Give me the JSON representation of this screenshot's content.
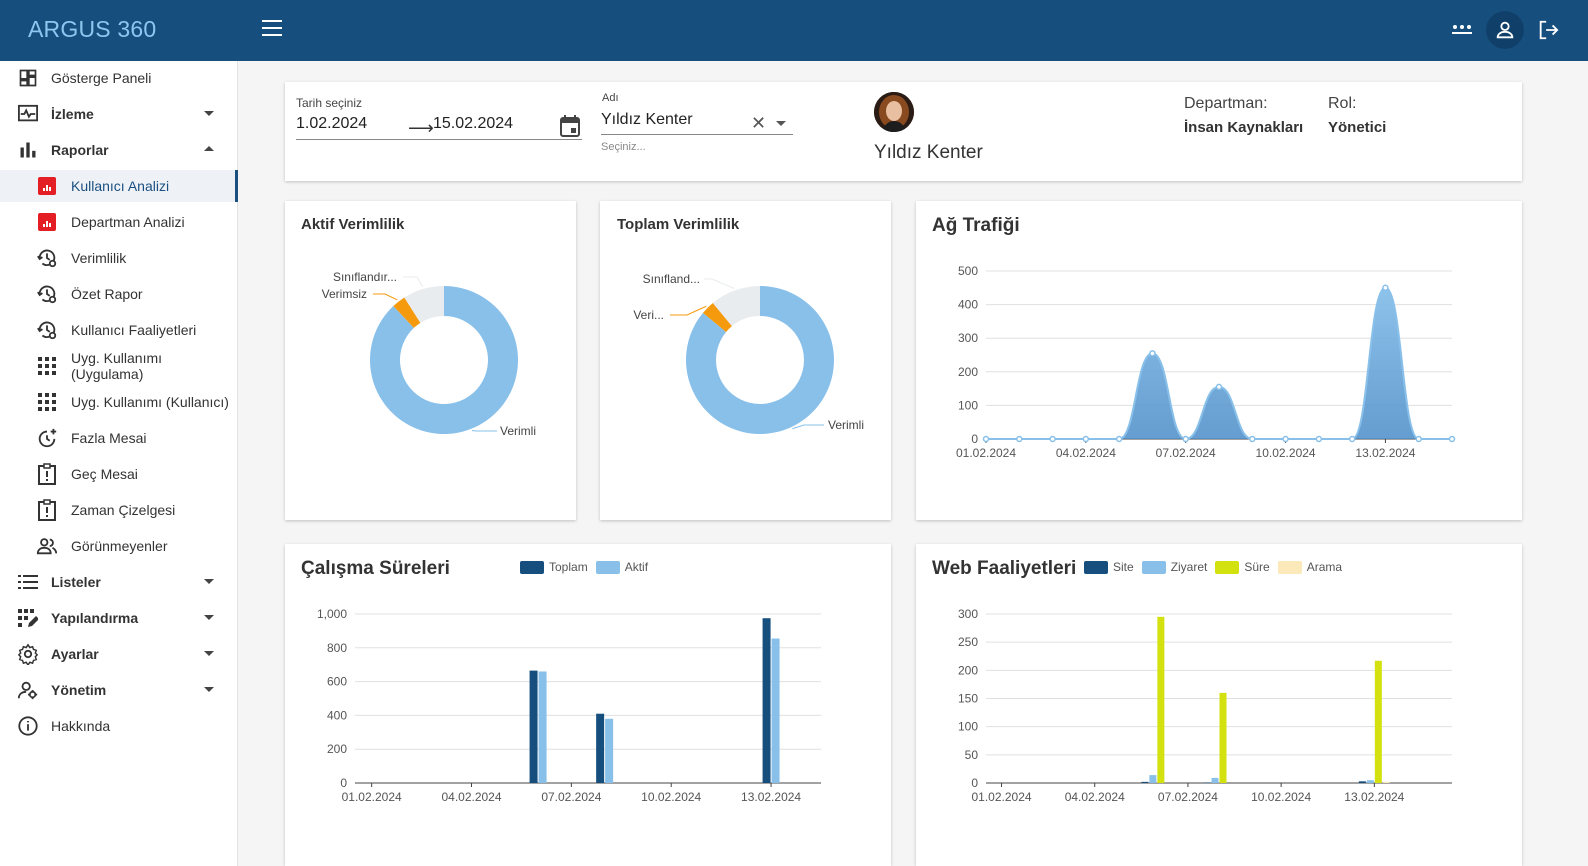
{
  "app": {
    "title": "ARGUS 360"
  },
  "colors": {
    "header": "#164f7e",
    "brand": "#8ec6ef",
    "primary_light": "#88c0ea",
    "primary_dark": "#164f7e",
    "orange": "#f59a0c",
    "grey": "#e9ecee",
    "lime": "#d3e20f",
    "cream": "#fbe9b9"
  },
  "header_icons": [
    "menu-icon",
    "more-icon",
    "user-icon",
    "logout-icon"
  ],
  "sidebar": {
    "items": [
      {
        "label": "Gösterge Paneli",
        "icon": "dashboard-icon"
      },
      {
        "label": "İzleme",
        "icon": "monitor-icon"
      },
      {
        "label": "Raporlar",
        "icon": "bar-chart-icon"
      },
      {
        "label": "Kullanıcı Analizi",
        "icon": "report-icon"
      },
      {
        "label": "Departman Analizi",
        "icon": "report-icon"
      },
      {
        "label": "Verimlilik",
        "icon": "history-gear-icon"
      },
      {
        "label": "Özet Rapor",
        "icon": "history-gear-icon"
      },
      {
        "label": "Kullanıcı Faaliyetleri",
        "icon": "history-gear-icon"
      },
      {
        "label": "Uyg. Kullanımı (Uygulama)",
        "icon": "grid-icon"
      },
      {
        "label": "Uyg. Kullanımı (Kullanıcı)",
        "icon": "grid-icon"
      },
      {
        "label": "Fazla Mesai",
        "icon": "clock-plus-icon"
      },
      {
        "label": "Geç Mesai",
        "icon": "alert-box-icon"
      },
      {
        "label": "Zaman Çizelgesi",
        "icon": "alert-box-icon"
      },
      {
        "label": "Görünmeyenler",
        "icon": "people-icon"
      },
      {
        "label": "Listeler",
        "icon": "list-icon"
      },
      {
        "label": "Yapılandırma",
        "icon": "config-icon"
      },
      {
        "label": "Ayarlar",
        "icon": "gear-icon"
      },
      {
        "label": "Yönetim",
        "icon": "admin-icon"
      },
      {
        "label": "Hakkında",
        "icon": "info-icon"
      }
    ]
  },
  "filter": {
    "date_label": "Tarih seçiniz",
    "start_date": "1.02.2024",
    "end_date": "15.02.2024",
    "name_label": "Adı",
    "name_value": "Yıldız Kenter",
    "name_hint": "Seçiniz...",
    "user_name": "Yıldız Kenter",
    "dept_label": "Departman:",
    "dept_value": "İnsan Kaynakları",
    "role_label": "Rol:",
    "role_value": "Yönetici"
  },
  "chart_data": [
    {
      "type": "pie",
      "title": "Aktif Verimlilik",
      "labels": [
        "Verimli",
        "Verimsiz",
        "Sınıflandır..."
      ],
      "values": [
        88,
        3,
        9
      ]
    },
    {
      "type": "pie",
      "title": "Toplam Verimlilik",
      "labels": [
        "Verimli",
        "Veri...",
        "Sınıfland..."
      ],
      "values": [
        86,
        3,
        11
      ]
    },
    {
      "type": "area",
      "title": "Ağ Trafiği",
      "x": [
        "01.02.2024",
        "02.02.2024",
        "03.02.2024",
        "04.02.2024",
        "05.02.2024",
        "06.02.2024",
        "07.02.2024",
        "08.02.2024",
        "09.02.2024",
        "10.02.2024",
        "11.02.2024",
        "12.02.2024",
        "13.02.2024",
        "14.02.2024",
        "15.02.2024"
      ],
      "tick_labels": [
        "01.02.2024",
        "04.02.2024",
        "07.02.2024",
        "10.02.2024",
        "13.02.2024"
      ],
      "values": [
        0,
        0,
        0,
        0,
        0,
        255,
        0,
        155,
        0,
        0,
        0,
        0,
        450,
        0,
        0
      ],
      "ylim": [
        0,
        500
      ],
      "yticks": [
        0,
        100,
        200,
        300,
        400,
        500
      ]
    },
    {
      "type": "bar",
      "title": "Çalışma Süreleri",
      "x": [
        "01.02.2024",
        "02.02.2024",
        "03.02.2024",
        "04.02.2024",
        "05.02.2024",
        "06.02.2024",
        "07.02.2024",
        "08.02.2024",
        "09.02.2024",
        "10.02.2024",
        "11.02.2024",
        "12.02.2024",
        "13.02.2024",
        "14.02.2024"
      ],
      "tick_labels": [
        "01.02.2024",
        "04.02.2024",
        "07.02.2024",
        "10.02.2024",
        "13.02.2024"
      ],
      "series": [
        {
          "name": "Toplam",
          "values": [
            0,
            0,
            0,
            0,
            0,
            665,
            0,
            410,
            0,
            0,
            0,
            0,
            975,
            0
          ]
        },
        {
          "name": "Aktif",
          "values": [
            0,
            0,
            0,
            0,
            0,
            660,
            0,
            380,
            0,
            0,
            0,
            0,
            855,
            0
          ]
        }
      ],
      "ylim": [
        0,
        1000
      ],
      "yticks": [
        "0",
        "200",
        "400",
        "600",
        "800",
        "1,000"
      ]
    },
    {
      "type": "bar",
      "title": "Web Faaliyetleri",
      "x": [
        "01.02.2024",
        "02.02.2024",
        "03.02.2024",
        "04.02.2024",
        "05.02.2024",
        "06.02.2024",
        "07.02.2024",
        "08.02.2024",
        "09.02.2024",
        "10.02.2024",
        "11.02.2024",
        "12.02.2024",
        "13.02.2024",
        "14.02.2024",
        "15.02.2024"
      ],
      "tick_labels": [
        "01.02.2024",
        "04.02.2024",
        "07.02.2024",
        "10.02.2024",
        "13.02.2024"
      ],
      "series": [
        {
          "name": "Site",
          "values": [
            0,
            0,
            0,
            0,
            0,
            2,
            0,
            1,
            0,
            0,
            0,
            0,
            3,
            0,
            0
          ]
        },
        {
          "name": "Ziyaret",
          "values": [
            0,
            0,
            0,
            0,
            0,
            14,
            0,
            9,
            0,
            0,
            0,
            0,
            5,
            0,
            0
          ]
        },
        {
          "name": "Süre",
          "values": [
            0,
            0,
            0,
            0,
            0,
            295,
            0,
            160,
            0,
            0,
            0,
            0,
            217,
            0,
            0
          ]
        },
        {
          "name": "Arama",
          "values": [
            0,
            0,
            0,
            0,
            0,
            0,
            0,
            0,
            0,
            0,
            0,
            0,
            2,
            0,
            0
          ]
        }
      ],
      "ylim": [
        0,
        300
      ],
      "yticks": [
        0,
        50,
        100,
        150,
        200,
        250,
        300
      ]
    }
  ]
}
